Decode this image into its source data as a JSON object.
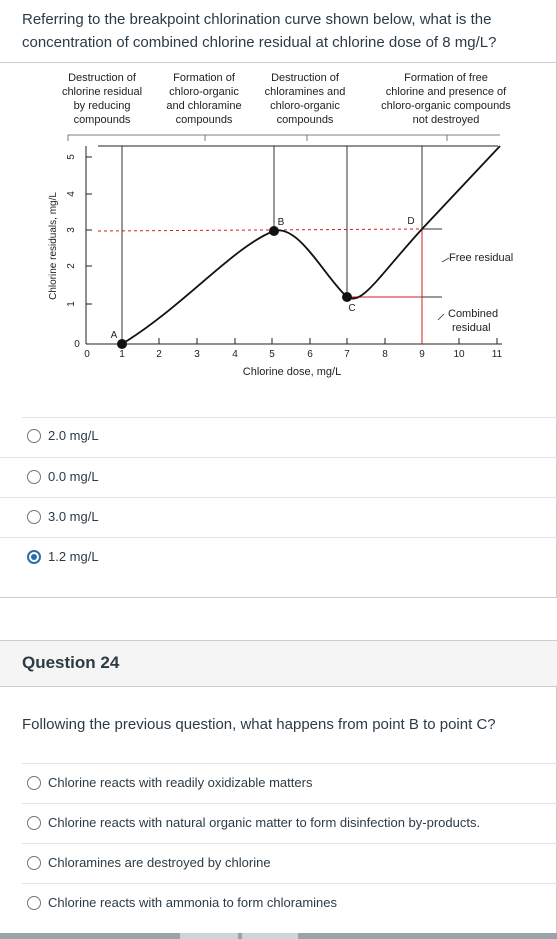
{
  "question23": {
    "text": "Referring to the breakpoint chlorination curve shown below, what is the concentration of combined chlorine residual at chlorine dose of 8 mg/L?",
    "figure": {
      "regions": [
        [
          "Destruction of",
          "chlorine residual",
          "by reducing",
          "compounds"
        ],
        [
          "Formation of",
          "chloro-organic",
          "and chloramine",
          "compounds"
        ],
        [
          "Destruction of",
          "chloramines and",
          "chloro-organic",
          "compounds"
        ],
        [
          "Formation of free",
          "chlorine and presence of",
          "chloro-organic compounds",
          "not destroyed"
        ]
      ],
      "y_label": "Chlorine residuals, mg/L",
      "x_label": "Chlorine dose, mg/L",
      "y_ticks": [
        "0",
        "1",
        "2",
        "3",
        "4",
        "5"
      ],
      "x_ticks": [
        "0",
        "1",
        "2",
        "3",
        "4",
        "5",
        "6",
        "7",
        "8",
        "9",
        "10",
        "11"
      ],
      "points": [
        "A",
        "B",
        "C",
        "D"
      ],
      "free_residual_label": "Free residual",
      "combined_residual_label": [
        "Combined",
        "residual"
      ]
    },
    "answers": [
      {
        "label": "2.0 mg/L",
        "selected": false
      },
      {
        "label": "0.0 mg/L",
        "selected": false
      },
      {
        "label": "3.0 mg/L",
        "selected": false
      },
      {
        "label": "1.2 mg/L",
        "selected": true
      }
    ]
  },
  "question24": {
    "title": "Question 24",
    "text": "Following the previous question, what happens from point B to point C?",
    "answers": [
      {
        "label": "Chlorine reacts with readily oxidizable matters"
      },
      {
        "label": "Chlorine reacts with natural organic matter to form disinfection by-products."
      },
      {
        "label": "Chloramines are destroyed by chlorine"
      },
      {
        "label": "Chlorine reacts with ammonia to form chloramines"
      }
    ]
  },
  "colors": {
    "accent": "#2d6ea8",
    "text": "#2d3b45",
    "border": "#c7cdd1",
    "marker_red": "#cc2222"
  }
}
